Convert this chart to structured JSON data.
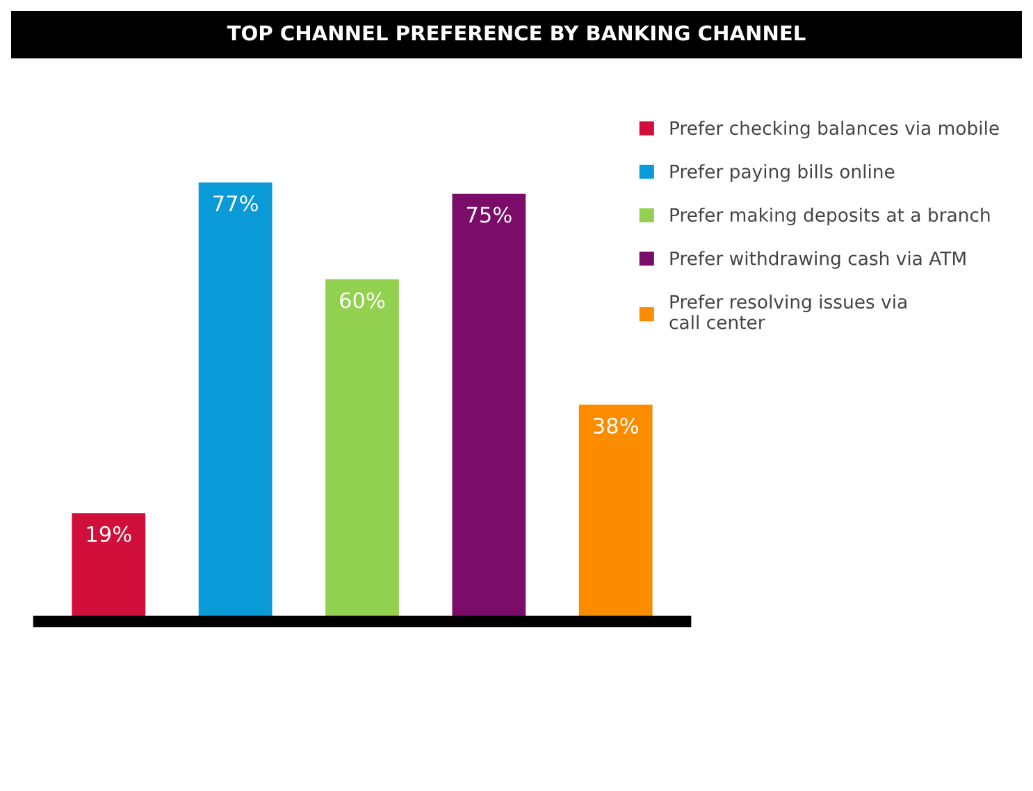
{
  "chart_data": {
    "type": "bar",
    "title": "TOP CHANNEL PREFERENCE BY BANKING CHANNEL",
    "categories": [
      null,
      null,
      null,
      null,
      null
    ],
    "series": [
      {
        "name": "Prefer checking balances via mobile",
        "color": "#d0103a",
        "values": [
          19,
          null,
          null,
          null,
          null
        ],
        "value_labels": [
          "19%",
          null,
          null,
          null,
          null
        ]
      },
      {
        "name": "Prefer paying bills online",
        "color": "#0a9ad7",
        "values": [
          null,
          77,
          null,
          null,
          null
        ],
        "value_labels": [
          null,
          "77%",
          null,
          null,
          null
        ]
      },
      {
        "name": "Prefer making deposits at a branch",
        "color": "#92d050",
        "values": [
          null,
          null,
          60,
          null,
          null
        ],
        "value_labels": [
          null,
          null,
          "60%",
          null,
          null
        ]
      },
      {
        "name": "Prefer withdrawing cash via ATM",
        "color": "#7b0c6a",
        "values": [
          null,
          null,
          null,
          75,
          null
        ],
        "value_labels": [
          null,
          null,
          null,
          "75%",
          null
        ]
      },
      {
        "name": "Prefer resolving issues via\ncall center",
        "color": "#fb8c00",
        "values": [
          null,
          null,
          null,
          null,
          38
        ],
        "value_labels": [
          null,
          null,
          null,
          null,
          "38%"
        ]
      }
    ],
    "stacked": true,
    "legend": "right"
  }
}
